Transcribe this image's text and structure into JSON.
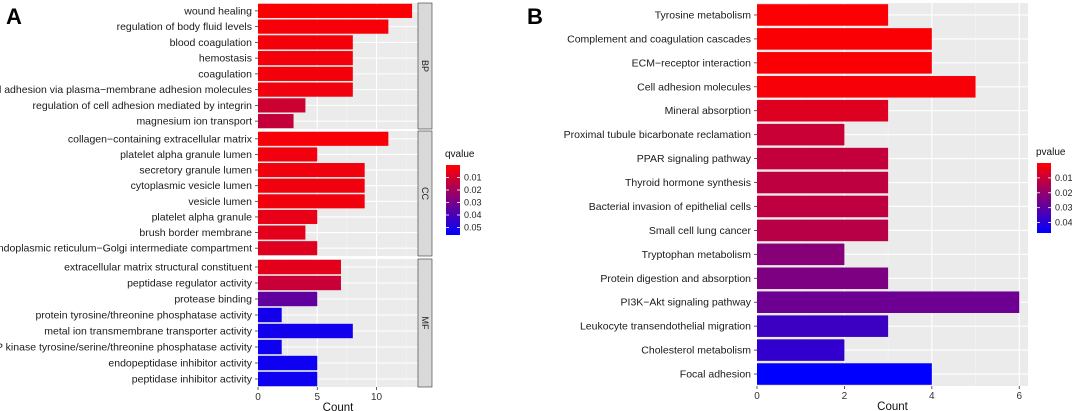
{
  "chart_data": [
    {
      "panel": "A",
      "type": "bar",
      "orientation": "horizontal",
      "xlabel": "Count",
      "xlim": [
        0,
        13.5
      ],
      "xticks": [
        0,
        5,
        10
      ],
      "legend": {
        "title": "qvalue",
        "ticks": [
          0.01,
          0.02,
          0.03,
          0.04,
          0.05
        ],
        "range": [
          0.0,
          0.056
        ],
        "low_color": "#ff0000",
        "high_color": "#0000ff"
      },
      "facets": [
        {
          "name": "BP",
          "categories": [
            "wound healing",
            "regulation of body fluid levels",
            "blood coagulation",
            "hemostasis",
            "coagulation",
            "cell−cell adhesion via plasma−membrane adhesion molecules",
            "regulation of cell adhesion mediated by integrin",
            "magnesium ion transport"
          ],
          "values": [
            13,
            11,
            8,
            8,
            8,
            8,
            4,
            3
          ],
          "qvalues": [
            0.0012,
            0.0018,
            0.0025,
            0.0025,
            0.0025,
            0.003,
            0.011,
            0.013
          ]
        },
        {
          "name": "CC",
          "categories": [
            "collagen−containing extracellular matrix",
            "platelet alpha granule lumen",
            "secretory granule lumen",
            "cytoplasmic vesicle lumen",
            "vesicle lumen",
            "platelet alpha granule",
            "brush border membrane",
            "endoplasmic reticulum−Golgi intermediate compartment"
          ],
          "values": [
            11,
            5,
            9,
            9,
            9,
            5,
            4,
            5
          ],
          "qvalues": [
            0.0015,
            0.0028,
            0.003,
            0.003,
            0.003,
            0.005,
            0.006,
            0.007
          ]
        },
        {
          "name": "MF",
          "categories": [
            "extracellular matrix structural constituent",
            "peptidase regulator activity",
            "protease binding",
            "protein tyrosine/threonine phosphatase activity",
            "metal ion transmembrane transporter activity",
            "MAP kinase tyrosine/serine/threonine phosphatase activity",
            "endopeptidase inhibitor activity",
            "peptidase inhibitor activity"
          ],
          "values": [
            7,
            7,
            5,
            2,
            8,
            2,
            5,
            5
          ],
          "qvalues": [
            0.006,
            0.012,
            0.035,
            0.052,
            0.052,
            0.053,
            0.053,
            0.053
          ]
        }
      ]
    },
    {
      "panel": "B",
      "type": "bar",
      "orientation": "horizontal",
      "xlabel": "Count",
      "xlim": [
        0,
        6.2
      ],
      "xticks": [
        0,
        2,
        4,
        6
      ],
      "legend": {
        "title": "pvalue",
        "ticks": [
          0.01,
          0.02,
          0.03,
          0.04
        ],
        "range": [
          0.0,
          0.047
        ],
        "low_color": "#ff0000",
        "high_color": "#0000ff"
      },
      "categories": [
        "Tyrosine metabolism",
        "Complement and coagulation cascades",
        "ECM−receptor interaction",
        "Cell adhesion molecules",
        "Mineral absorption",
        "Proximal tubule bicarbonate reclamation",
        "PPAR signaling pathway",
        "Thyroid hormone synthesis",
        "Bacterial invasion of epithelial cells",
        "Small cell lung cancer",
        "Tryptophan metabolism",
        "Protein digestion and absorption",
        "PI3K−Akt signaling pathway",
        "Leukocyte transendothelial migration",
        "Cholesterol metabolism",
        "Focal adhesion"
      ],
      "values": [
        3,
        4,
        4,
        5,
        3,
        2,
        3,
        3,
        3,
        3,
        2,
        3,
        6,
        3,
        2,
        4
      ],
      "pvalues": [
        0.0005,
        0.001,
        0.001,
        0.0015,
        0.006,
        0.01,
        0.011,
        0.012,
        0.012,
        0.013,
        0.022,
        0.024,
        0.027,
        0.036,
        0.038,
        0.047
      ]
    }
  ]
}
